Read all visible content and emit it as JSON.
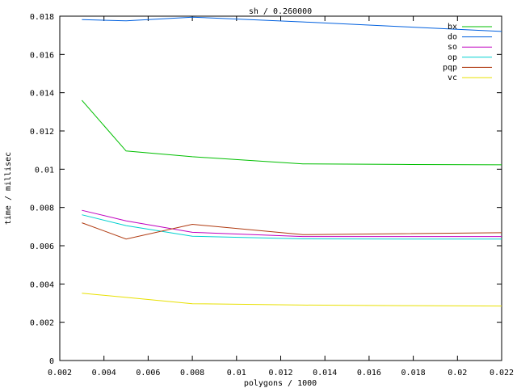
{
  "chart_data": {
    "type": "line",
    "title": "sh / 0.260000",
    "xlabel": "polygons / 1000",
    "ylabel": "time / millisec",
    "xlim": [
      0.002,
      0.022
    ],
    "ylim": [
      0,
      0.018
    ],
    "xticks": [
      0.002,
      0.004,
      0.006,
      0.008,
      0.01,
      0.012,
      0.014,
      0.016,
      0.018,
      0.02,
      0.022
    ],
    "xtick_labels": [
      "0.002",
      "0.004",
      "0.006",
      "0.008",
      "0.01",
      "0.012",
      "0.014",
      "0.016",
      "0.018",
      "0.02",
      "0.022"
    ],
    "yticks": [
      0,
      0.002,
      0.004,
      0.006,
      0.008,
      0.01,
      0.012,
      0.014,
      0.016,
      0.018
    ],
    "ytick_labels": [
      "0",
      "0.002",
      "0.004",
      "0.006",
      "0.008",
      "0.01",
      "0.012",
      "0.014",
      "0.016",
      "0.018"
    ],
    "grid": false,
    "legend_position": "top-right",
    "series": [
      {
        "name": "bx",
        "color": "#00bf00",
        "points": [
          [
            0.003,
            0.0136
          ],
          [
            0.005,
            0.01095
          ],
          [
            0.008,
            0.01065
          ],
          [
            0.013,
            0.01028
          ],
          [
            0.0175,
            0.01025
          ],
          [
            0.022,
            0.01023
          ]
        ]
      },
      {
        "name": "do",
        "color": "#0060df",
        "points": [
          [
            0.003,
            0.01782
          ],
          [
            0.005,
            0.01776
          ],
          [
            0.008,
            0.01795
          ],
          [
            0.013,
            0.0177
          ],
          [
            0.0175,
            0.01745
          ],
          [
            0.022,
            0.0172
          ]
        ]
      },
      {
        "name": "so",
        "color": "#bf00bf",
        "points": [
          [
            0.003,
            0.00785
          ],
          [
            0.005,
            0.0073
          ],
          [
            0.008,
            0.0067
          ],
          [
            0.013,
            0.00648
          ],
          [
            0.0175,
            0.00648
          ],
          [
            0.022,
            0.00648
          ]
        ]
      },
      {
        "name": "op",
        "color": "#00d0d0",
        "points": [
          [
            0.003,
            0.00762
          ],
          [
            0.005,
            0.00705
          ],
          [
            0.008,
            0.0065
          ],
          [
            0.013,
            0.00636
          ],
          [
            0.0175,
            0.00635
          ],
          [
            0.022,
            0.00635
          ]
        ]
      },
      {
        "name": "pqp",
        "color": "#b03a10",
        "points": [
          [
            0.003,
            0.0072
          ],
          [
            0.005,
            0.00635
          ],
          [
            0.008,
            0.00712
          ],
          [
            0.013,
            0.00658
          ],
          [
            0.0175,
            0.00663
          ],
          [
            0.022,
            0.00668
          ]
        ]
      },
      {
        "name": "vc",
        "color": "#e8e000",
        "points": [
          [
            0.003,
            0.00352
          ],
          [
            0.005,
            0.0033
          ],
          [
            0.008,
            0.00297
          ],
          [
            0.013,
            0.0029
          ],
          [
            0.0175,
            0.00287
          ],
          [
            0.022,
            0.00285
          ]
        ]
      }
    ]
  }
}
